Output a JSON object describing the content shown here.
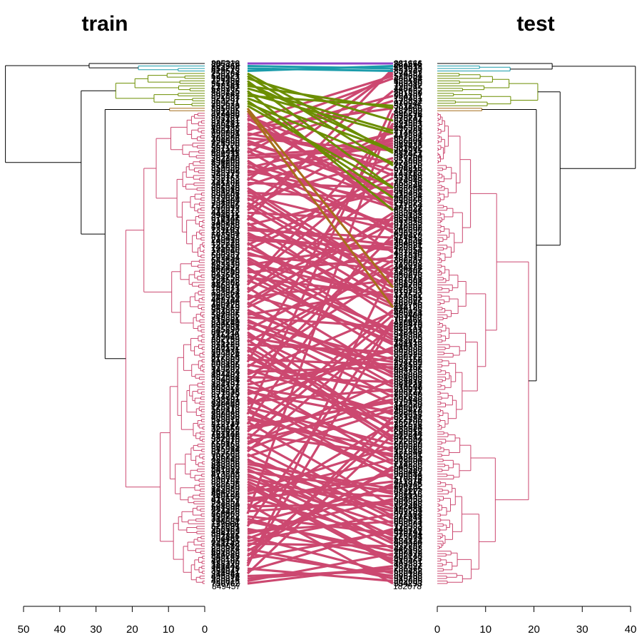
{
  "chart_data": {
    "type": "tanglegram",
    "panels": [
      {
        "id": "left",
        "title": "train",
        "axis": {
          "ticks": [
            50,
            40,
            30,
            20,
            10,
            0
          ],
          "lim": [
            50,
            0
          ]
        }
      },
      {
        "id": "right",
        "title": "test",
        "axis": {
          "ticks": [
            0,
            10,
            20,
            30,
            40
          ],
          "lim": [
            0,
            40
          ]
        }
      }
    ],
    "leaf_labels_visible": {
      "left_top": "207274",
      "left_bottom": "849457",
      "right_top": "207274",
      "right_bottom": "182078"
    },
    "clusters": [
      {
        "color": "#8e44c8",
        "leaf_count": 1
      },
      {
        "color": "#1b9cab",
        "leaf_count": 3
      },
      {
        "color": "#6b8e00",
        "leaf_count": 14
      },
      {
        "color": "#a66f1a",
        "leaf_count": 2
      },
      {
        "color": "#cc4870",
        "leaf_count": 190
      }
    ],
    "colors": {
      "violet": "#8e44c8",
      "teal": "#1b9cab",
      "olive": "#6b8e00",
      "brown": "#a66f1a",
      "crimson": "#cc4870",
      "black": "#000000"
    }
  }
}
